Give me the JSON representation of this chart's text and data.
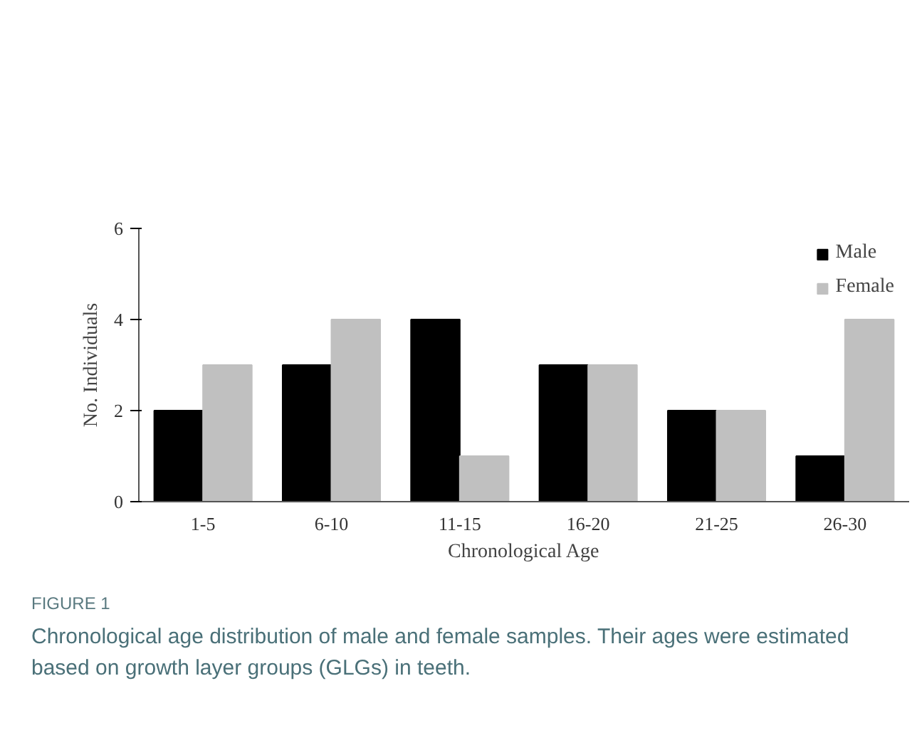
{
  "chart_data": {
    "type": "bar",
    "categories": [
      "1-5",
      "6-10",
      "11-15",
      "16-20",
      "21-25",
      "26-30"
    ],
    "series": [
      {
        "name": "Male",
        "color": "#000000",
        "values": [
          2,
          3,
          4,
          3,
          2,
          1
        ]
      },
      {
        "name": "Female",
        "color": "#c0c0c0",
        "values": [
          3,
          4,
          1,
          3,
          2,
          4
        ]
      }
    ],
    "ylim": [
      0,
      6
    ],
    "yticks": [
      0,
      2,
      4,
      6
    ],
    "xlabel": "Chronological Age",
    "ylabel": "No. Individuals",
    "legend": "top right",
    "grid": false,
    "annotations": [
      "FIGURE 1",
      "Chronological age distribution of male and female samples. Their ages were estimated based on growth layer groups (GLGs) in teeth."
    ]
  }
}
